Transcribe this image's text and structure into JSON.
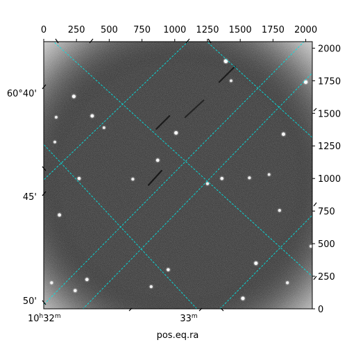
{
  "chart_data": {
    "type": "image",
    "description_free": true,
    "xlabel": "pos.eq.ra",
    "ylabel": "",
    "pixel_axes": {
      "x_range": [
        0,
        2050
      ],
      "y_range": [
        0,
        2050
      ],
      "x_ticks": [
        0,
        250,
        500,
        750,
        1000,
        1250,
        1500,
        1750,
        2000
      ],
      "y_ticks": [
        0,
        250,
        500,
        750,
        1000,
        1250,
        1500,
        1750,
        2000
      ],
      "x_tick_labels": [
        "0",
        "250",
        "500",
        "750",
        "1000",
        "1250",
        "1500",
        "1750",
        "2000"
      ],
      "y_tick_labels": [
        "0",
        "250",
        "500",
        "750",
        "1000",
        "1250",
        "1500",
        "1750",
        "2000"
      ]
    },
    "world_axes": {
      "ra_tick_labels": [
        {
          "value": "10h32m",
          "hours": 10,
          "minutes": 32
        },
        {
          "value": "33m",
          "minutes": 33
        }
      ],
      "dec_tick_labels": [
        {
          "value": "60°40'"
        },
        {
          "value": "45'"
        },
        {
          "value": "50'"
        }
      ]
    },
    "grid": {
      "on": true,
      "color": "#00e5e5",
      "style": "dashed"
    },
    "image": {
      "colormap": "gray",
      "background_level": 0.28,
      "stars": [
        {
          "x": 1390,
          "y": 1900,
          "brightness": 1.0
        },
        {
          "x": 2000,
          "y": 1740,
          "brightness": 0.9
        },
        {
          "x": 230,
          "y": 1630,
          "brightness": 0.85
        },
        {
          "x": 370,
          "y": 1480,
          "brightness": 0.8
        },
        {
          "x": 1010,
          "y": 1350,
          "brightness": 0.85
        },
        {
          "x": 1830,
          "y": 1340,
          "brightness": 0.8
        },
        {
          "x": 870,
          "y": 1140,
          "brightness": 0.75
        },
        {
          "x": 270,
          "y": 1000,
          "brightness": 0.7
        },
        {
          "x": 680,
          "y": 995,
          "brightness": 0.6
        },
        {
          "x": 1360,
          "y": 1000,
          "brightness": 0.7
        },
        {
          "x": 1250,
          "y": 960,
          "brightness": 0.6
        },
        {
          "x": 1570,
          "y": 1005,
          "brightness": 0.6
        },
        {
          "x": 120,
          "y": 720,
          "brightness": 0.75
        },
        {
          "x": 1800,
          "y": 755,
          "brightness": 0.6
        },
        {
          "x": 1620,
          "y": 350,
          "brightness": 0.85
        },
        {
          "x": 950,
          "y": 300,
          "brightness": 0.7
        },
        {
          "x": 330,
          "y": 225,
          "brightness": 0.75
        },
        {
          "x": 60,
          "y": 200,
          "brightness": 0.6
        },
        {
          "x": 240,
          "y": 140,
          "brightness": 0.7
        },
        {
          "x": 820,
          "y": 170,
          "brightness": 0.6
        },
        {
          "x": 1520,
          "y": 80,
          "brightness": 0.85
        },
        {
          "x": 1860,
          "y": 200,
          "brightness": 0.6
        },
        {
          "x": 95,
          "y": 1470,
          "brightness": 0.55
        },
        {
          "x": 85,
          "y": 1280,
          "brightness": 0.5
        },
        {
          "x": 1720,
          "y": 1030,
          "brightness": 0.5
        },
        {
          "x": 460,
          "y": 1390,
          "brightness": 0.5
        },
        {
          "x": 1430,
          "y": 1750,
          "brightness": 0.5
        },
        {
          "x": 2040,
          "y": 480,
          "brightness": 0.6
        }
      ],
      "streaks": [
        {
          "x1": 1080,
          "y1": 1470,
          "x2": 1220,
          "y2": 1600,
          "brightness": 0.12
        },
        {
          "x1": 860,
          "y1": 1380,
          "x2": 960,
          "y2": 1480,
          "brightness": 0.08
        },
        {
          "x1": 1340,
          "y1": 1740,
          "x2": 1460,
          "y2": 1860,
          "brightness": 0.08
        },
        {
          "x1": 800,
          "y1": 950,
          "x2": 900,
          "y2": 1060,
          "brightness": 0.06
        }
      ]
    }
  }
}
